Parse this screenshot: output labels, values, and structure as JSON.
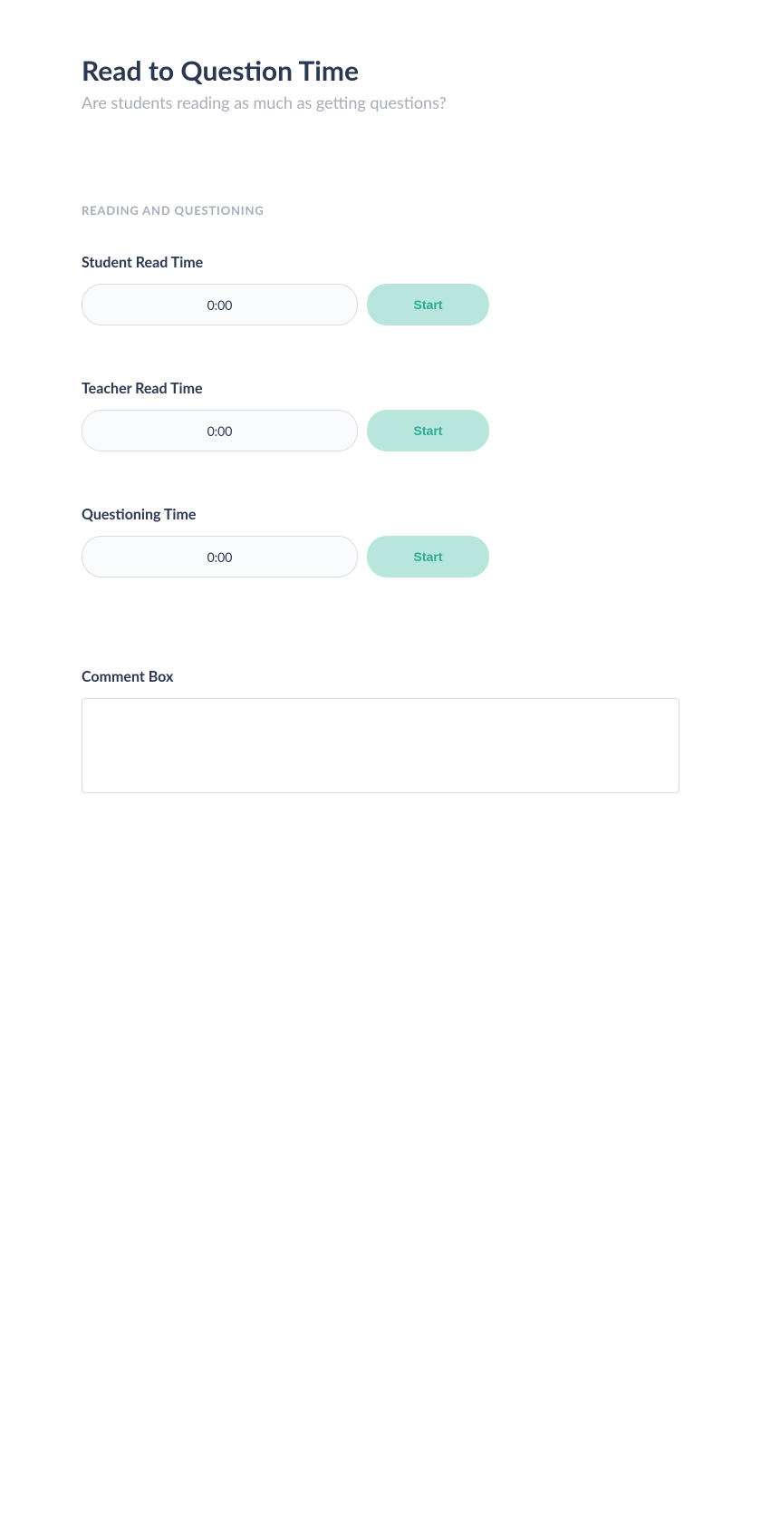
{
  "header": {
    "title": "Read to Question Time",
    "subtitle": "Are students reading as much as getting questions?"
  },
  "section": {
    "header": "READING AND QUESTIONING",
    "timers": [
      {
        "label": "Student Read Time",
        "value": "0:00",
        "button_label": "Start"
      },
      {
        "label": "Teacher Read Time",
        "value": "0:00",
        "button_label": "Start"
      },
      {
        "label": "Questioning Time",
        "value": "0:00",
        "button_label": "Start"
      }
    ]
  },
  "comment": {
    "label": "Comment Box",
    "value": ""
  },
  "colors": {
    "title_text": "#2c3850",
    "subtitle_text": "#a8aeb8",
    "section_header_text": "#a8aeb8",
    "border": "#d8dce2",
    "timer_bg": "#fafbfc",
    "button_bg": "#b9e6dc",
    "button_text": "#2aab92",
    "background": "#ffffff"
  }
}
